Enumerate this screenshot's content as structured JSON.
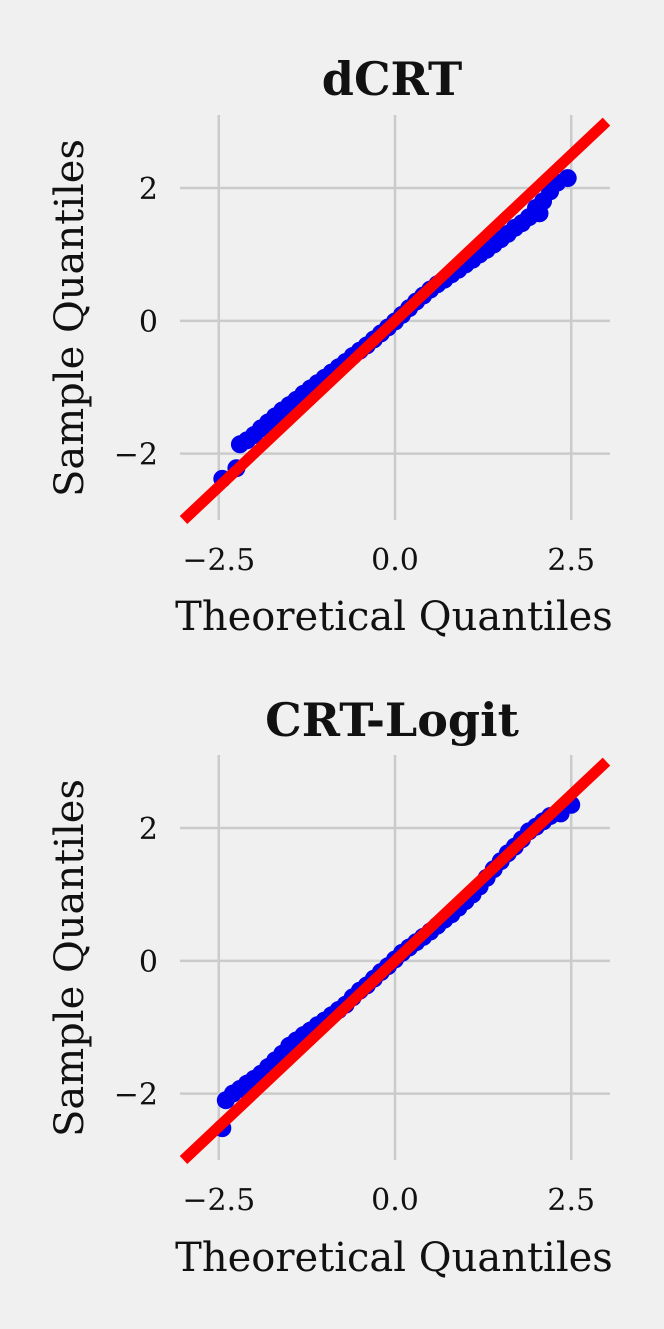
{
  "chart_data": [
    {
      "type": "scatter",
      "title": "dCRT",
      "xlabel": "Theoretical Quantiles",
      "ylabel": "Sample Quantiles",
      "xlim": [
        -3.05,
        3.05
      ],
      "ylim": [
        -3.0,
        3.1
      ],
      "xticks": [
        -2.5,
        0.0,
        2.5
      ],
      "xtick_labels": [
        "−2.5",
        "0.0",
        "2.5"
      ],
      "yticks": [
        -2,
        0,
        2
      ],
      "ytick_labels": [
        "−2",
        "0",
        "2"
      ],
      "grid": true,
      "point_color": "#0000ee",
      "line_color": "#ff0000",
      "reference_line": [
        [
          -3.0,
          -3.0
        ],
        [
          3.0,
          3.0
        ]
      ],
      "points": [
        [
          -2.45,
          -2.38
        ],
        [
          -2.25,
          -2.22
        ],
        [
          -2.2,
          -1.86
        ],
        [
          -2.1,
          -1.8
        ],
        [
          -2.0,
          -1.72
        ],
        [
          -1.9,
          -1.62
        ],
        [
          -1.8,
          -1.53
        ],
        [
          -1.7,
          -1.44
        ],
        [
          -1.6,
          -1.35
        ],
        [
          -1.5,
          -1.27
        ],
        [
          -1.4,
          -1.19
        ],
        [
          -1.3,
          -1.1
        ],
        [
          -1.2,
          -1.02
        ],
        [
          -1.1,
          -0.94
        ],
        [
          -1.0,
          -0.86
        ],
        [
          -0.9,
          -0.78
        ],
        [
          -0.8,
          -0.7
        ],
        [
          -0.7,
          -0.62
        ],
        [
          -0.6,
          -0.53
        ],
        [
          -0.5,
          -0.45
        ],
        [
          -0.4,
          -0.37
        ],
        [
          -0.3,
          -0.28
        ],
        [
          -0.2,
          -0.19
        ],
        [
          -0.1,
          -0.1
        ],
        [
          0.0,
          -0.01
        ],
        [
          0.1,
          0.09
        ],
        [
          0.2,
          0.19
        ],
        [
          0.3,
          0.29
        ],
        [
          0.4,
          0.38
        ],
        [
          0.5,
          0.47
        ],
        [
          0.6,
          0.55
        ],
        [
          0.7,
          0.62
        ],
        [
          0.8,
          0.7
        ],
        [
          0.9,
          0.77
        ],
        [
          1.0,
          0.85
        ],
        [
          1.1,
          0.92
        ],
        [
          1.2,
          1.0
        ],
        [
          1.3,
          1.07
        ],
        [
          1.4,
          1.15
        ],
        [
          1.5,
          1.23
        ],
        [
          1.6,
          1.31
        ],
        [
          1.7,
          1.4
        ],
        [
          1.8,
          1.47
        ],
        [
          1.9,
          1.56
        ],
        [
          2.0,
          1.7
        ],
        [
          2.05,
          1.62
        ],
        [
          2.1,
          1.8
        ],
        [
          2.2,
          1.95
        ],
        [
          2.3,
          2.08
        ],
        [
          2.45,
          2.15
        ]
      ]
    },
    {
      "type": "scatter",
      "title": "CRT-Logit",
      "xlabel": "Theoretical Quantiles",
      "ylabel": "Sample Quantiles",
      "xlim": [
        -3.05,
        3.05
      ],
      "ylim": [
        -3.0,
        3.1
      ],
      "xticks": [
        -2.5,
        0.0,
        2.5
      ],
      "xtick_labels": [
        "−2.5",
        "0.0",
        "2.5"
      ],
      "yticks": [
        -2,
        0,
        2
      ],
      "ytick_labels": [
        "−2",
        "0",
        "2"
      ],
      "grid": true,
      "point_color": "#0000ee",
      "line_color": "#ff0000",
      "reference_line": [
        [
          -3.0,
          -3.0
        ],
        [
          3.0,
          3.0
        ]
      ],
      "points": [
        [
          -2.45,
          -2.52
        ],
        [
          -2.4,
          -2.1
        ],
        [
          -2.3,
          -2.0
        ],
        [
          -2.2,
          -1.93
        ],
        [
          -2.1,
          -1.85
        ],
        [
          -2.0,
          -1.78
        ],
        [
          -1.9,
          -1.7
        ],
        [
          -1.8,
          -1.6
        ],
        [
          -1.7,
          -1.5
        ],
        [
          -1.6,
          -1.4
        ],
        [
          -1.5,
          -1.28
        ],
        [
          -1.4,
          -1.2
        ],
        [
          -1.3,
          -1.12
        ],
        [
          -1.2,
          -1.05
        ],
        [
          -1.1,
          -0.97
        ],
        [
          -1.0,
          -0.9
        ],
        [
          -0.9,
          -0.82
        ],
        [
          -0.8,
          -0.74
        ],
        [
          -0.7,
          -0.66
        ],
        [
          -0.6,
          -0.55
        ],
        [
          -0.5,
          -0.45
        ],
        [
          -0.4,
          -0.37
        ],
        [
          -0.3,
          -0.27
        ],
        [
          -0.2,
          -0.17
        ],
        [
          -0.1,
          -0.08
        ],
        [
          0.0,
          0.02
        ],
        [
          0.1,
          0.12
        ],
        [
          0.2,
          0.2
        ],
        [
          0.3,
          0.28
        ],
        [
          0.4,
          0.36
        ],
        [
          0.5,
          0.44
        ],
        [
          0.6,
          0.53
        ],
        [
          0.7,
          0.62
        ],
        [
          0.8,
          0.7
        ],
        [
          0.9,
          0.8
        ],
        [
          1.0,
          0.9
        ],
        [
          1.1,
          1.0
        ],
        [
          1.2,
          1.12
        ],
        [
          1.3,
          1.25
        ],
        [
          1.4,
          1.38
        ],
        [
          1.5,
          1.5
        ],
        [
          1.6,
          1.62
        ],
        [
          1.7,
          1.72
        ],
        [
          1.8,
          1.83
        ],
        [
          1.9,
          1.95
        ],
        [
          2.0,
          2.02
        ],
        [
          2.1,
          2.1
        ],
        [
          2.2,
          2.18
        ],
        [
          2.35,
          2.22
        ],
        [
          2.5,
          2.35
        ]
      ]
    }
  ]
}
